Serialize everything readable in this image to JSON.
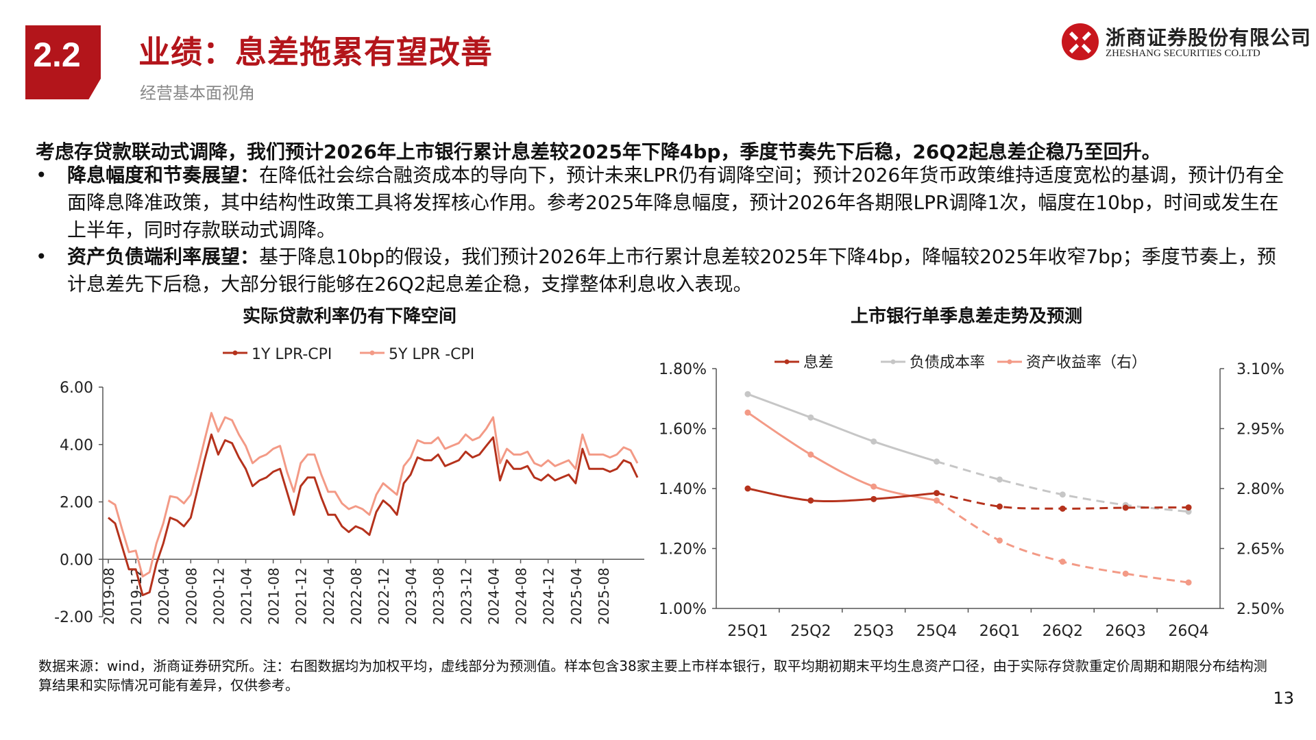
{
  "header": {
    "section_number": "2.2",
    "title": "业绩：息差拖累有望改善",
    "subtitle": "经营基本面视角",
    "logo_cn": "浙商证券股份有限公司",
    "logo_en": "ZHESHANG SECURITIES CO.LTD",
    "brand_color": "#b3151b"
  },
  "body": {
    "lead": "考虑存贷款联动式调降，我们预计2026年上市银行累计息差较2025年下降4bp，季度节奏先下后稳，26Q2起息差企稳乃至回升。",
    "bullets": [
      {
        "marker": "•",
        "label": "降息幅度和节奏展望：",
        "text": "在降低社会综合融资成本的导向下，预计未来LPR仍有调降空间；预计2026年货币政策维持适度宽松的基调，预计仍有全面降息降准政策，其中结构性政策工具将发挥核心作用。参考2025年降息幅度，预计2026年各期限LPR调降1次，幅度在10bp，时间或发生在上半年，同时存款联动式调降。"
      },
      {
        "marker": "•",
        "label": "资产负债端利率展望：",
        "text": "基于降息10bp的假设，我们预计2026年上市行累计息差较2025年下降4bp，降幅较2025年收窄7bp；季度节奏上，预计息差先下后稳，大部分银行能够在26Q2起息差企稳，支撑整体利息收入表现。"
      }
    ]
  },
  "chart_data": [
    {
      "type": "line",
      "title": "实际贷款利率仍有下降空间",
      "xlabel": "",
      "ylabel": "",
      "ylim": [
        -2,
        6
      ],
      "yticks": [
        "6.00",
        "4.00",
        "2.00",
        "0.00",
        "-2.00"
      ],
      "x_tick_labels": [
        "2019-08",
        "2019-12",
        "2020-04",
        "2020-08",
        "2020-12",
        "2021-04",
        "2021-08",
        "2021-12",
        "2022-04",
        "2022-08",
        "2022-12",
        "2023-04",
        "2023-08",
        "2023-12",
        "2024-04",
        "2024-08",
        "2024-12",
        "2025-04",
        "2025-08"
      ],
      "x_start": "2019-08",
      "grid": false,
      "legend_position": "top",
      "series": [
        {
          "name": "1Y LPR-CPI",
          "color": "#b5321c",
          "values": [
            1.45,
            1.25,
            0.45,
            -0.35,
            -0.35,
            -1.25,
            -1.15,
            -0.15,
            0.55,
            1.45,
            1.35,
            1.15,
            1.45,
            2.45,
            3.45,
            4.35,
            3.65,
            4.15,
            4.05,
            3.55,
            3.15,
            2.55,
            2.75,
            2.85,
            3.05,
            3.15,
            2.35,
            1.55,
            2.55,
            2.85,
            2.85,
            2.15,
            1.55,
            1.55,
            1.15,
            0.95,
            1.15,
            1.05,
            0.85,
            1.65,
            2.05,
            1.85,
            1.55,
            2.65,
            2.95,
            3.55,
            3.45,
            3.45,
            3.65,
            3.25,
            3.35,
            3.45,
            3.75,
            3.55,
            3.65,
            3.95,
            4.25,
            2.75,
            3.45,
            3.15,
            3.15,
            3.25,
            2.85,
            2.75,
            2.95,
            2.75,
            2.85,
            2.95,
            2.65,
            3.85,
            3.15,
            3.15,
            3.15,
            3.05,
            3.15,
            3.45,
            3.35,
            2.85
          ]
        },
        {
          "name": "5Y LPR -CPI",
          "color": "#f39a86",
          "values": [
            2.05,
            1.9,
            1.05,
            0.25,
            0.3,
            -0.6,
            -0.45,
            0.55,
            1.25,
            2.2,
            2.15,
            1.95,
            2.25,
            3.15,
            4.15,
            5.1,
            4.45,
            4.95,
            4.85,
            4.35,
            3.95,
            3.35,
            3.55,
            3.65,
            3.85,
            3.95,
            3.05,
            2.35,
            3.35,
            3.65,
            3.65,
            2.95,
            2.35,
            2.35,
            1.95,
            1.75,
            1.85,
            1.75,
            1.55,
            2.25,
            2.65,
            2.45,
            2.25,
            3.25,
            3.55,
            4.15,
            4.05,
            4.05,
            4.25,
            3.85,
            3.95,
            4.05,
            4.35,
            4.15,
            4.25,
            4.55,
            4.95,
            3.35,
            3.85,
            3.65,
            3.65,
            3.75,
            3.35,
            3.25,
            3.45,
            3.25,
            3.35,
            3.45,
            3.15,
            4.35,
            3.65,
            3.65,
            3.65,
            3.55,
            3.65,
            3.9,
            3.8,
            3.35
          ]
        }
      ]
    },
    {
      "type": "line",
      "title": "上市银行单季息差走势及预测",
      "xlabel": "",
      "ylabel": "",
      "categories": [
        "25Q1",
        "25Q2",
        "25Q3",
        "25Q4",
        "26Q1",
        "26Q2",
        "26Q3",
        "26Q4"
      ],
      "ylim_left": [
        1.0,
        1.8
      ],
      "ylim_right": [
        2.5,
        3.1
      ],
      "yticks_left": [
        "1.80%",
        "1.60%",
        "1.40%",
        "1.20%",
        "1.00%"
      ],
      "yticks_right": [
        "3.10%",
        "2.95%",
        "2.80%",
        "2.65%",
        "2.50%"
      ],
      "forecast_from_index": 3,
      "grid": false,
      "legend_position": "top",
      "series": [
        {
          "name": "息差",
          "axis": "left",
          "color": "#b5321c",
          "values": [
            1.4,
            1.36,
            1.365,
            1.385,
            1.34,
            1.333,
            1.336,
            1.337
          ]
        },
        {
          "name": "负债成本率",
          "axis": "left",
          "color": "#c6c6c6",
          "values": [
            1.715,
            1.637,
            1.557,
            1.49,
            1.43,
            1.38,
            1.345,
            1.323
          ]
        },
        {
          "name": "资产收益率（右）",
          "axis": "right",
          "color": "#f39a86",
          "values": [
            2.99,
            2.885,
            2.805,
            2.77,
            2.67,
            2.617,
            2.587,
            2.565
          ]
        }
      ]
    }
  ],
  "footnote": "数据来源：wind，浙商证券研究所。注：右图数据均为加权平均，虚线部分为预测值。样本包含38家主要上市样本银行，取平均期初期末平均生息资产口径，由于实际存贷款重定价周期和期限分布结构测算结果和实际情况可能有差异，仅供参考。",
  "page_number": "13"
}
